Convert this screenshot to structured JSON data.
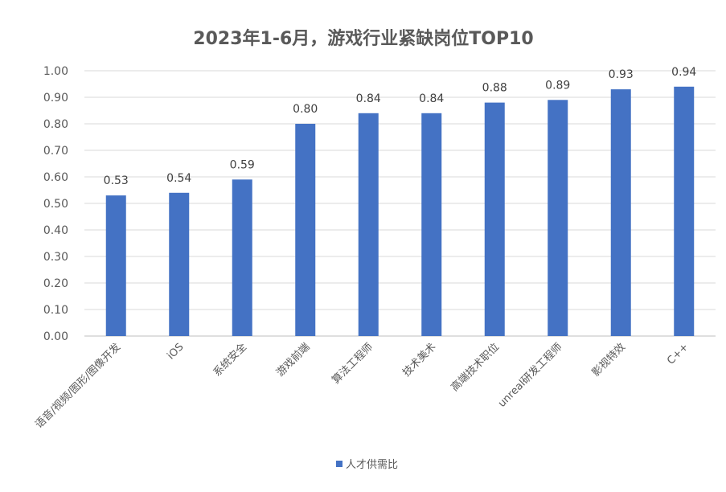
{
  "chart_data": {
    "type": "bar",
    "title": "2023年1-6月，游戏行业紧缺岗位TOP10",
    "categories": [
      "语音/视频/图形/图像开发",
      "iOS",
      "系统安全",
      "游戏前端",
      "算法工程师",
      "技术美术",
      "高端技术职位",
      "unreal研发工程师",
      "影视特效",
      "C++"
    ],
    "series": [
      {
        "name": "人才供需比",
        "values": [
          0.53,
          0.54,
          0.59,
          0.8,
          0.84,
          0.84,
          0.88,
          0.89,
          0.93,
          0.94
        ],
        "color": "#4472C4"
      }
    ],
    "data_labels": [
      "0.53",
      "0.54",
      "0.59",
      "0.80",
      "0.84",
      "0.84",
      "0.88",
      "0.89",
      "0.93",
      "0.94"
    ],
    "yticks": [
      "0.00",
      "0.10",
      "0.20",
      "0.30",
      "0.40",
      "0.50",
      "0.60",
      "0.70",
      "0.80",
      "0.90",
      "1.00"
    ],
    "ylim": [
      0,
      1
    ],
    "grid": true,
    "legend": "bottom",
    "xlabel": "",
    "ylabel": ""
  }
}
